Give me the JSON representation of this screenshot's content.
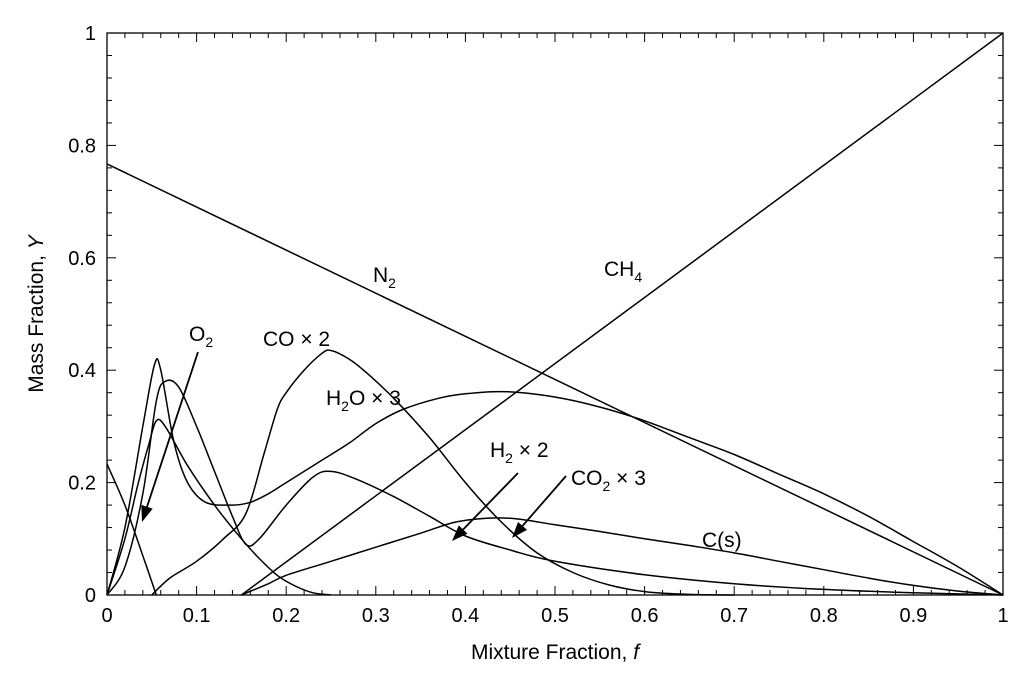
{
  "chart_data": {
    "type": "line",
    "xlabel": "Mixture Fraction, ",
    "xlabel_var": "f",
    "ylabel": "Mass Fraction, ",
    "ylabel_var": "Y",
    "xlim": [
      0,
      1
    ],
    "ylim": [
      0,
      1
    ],
    "x_ticks": [
      0,
      0.1,
      0.2,
      0.3,
      0.4,
      0.5,
      0.6,
      0.7,
      0.8,
      0.9,
      1
    ],
    "x_tick_labels": [
      "0",
      "0.1",
      "0.2",
      "0.3",
      "0.4",
      "0.5",
      "0.6",
      "0.7",
      "0.8",
      "0.9",
      "1"
    ],
    "y_ticks": [
      0,
      0.2,
      0.4,
      0.6,
      0.8,
      1
    ],
    "y_tick_labels": [
      "0",
      "0.2",
      "0.4",
      "0.6",
      "0.8",
      "1"
    ],
    "grid": false,
    "line_color": "#000000",
    "series": [
      {
        "name": "N2",
        "points": [
          [
            0,
            0.767
          ],
          [
            1,
            0
          ]
        ]
      },
      {
        "name": "CH4",
        "points": [
          [
            0.15,
            0
          ],
          [
            1,
            1
          ]
        ]
      },
      {
        "name": "O2",
        "points": [
          [
            0,
            0.233
          ],
          [
            0.02,
            0.16
          ],
          [
            0.04,
            0.07
          ],
          [
            0.055,
            0.0
          ]
        ]
      },
      {
        "name": "CO × 2",
        "points": [
          [
            0,
            0
          ],
          [
            0.02,
            0.05
          ],
          [
            0.04,
            0.18
          ],
          [
            0.055,
            0.345
          ],
          [
            0.065,
            0.38
          ],
          [
            0.08,
            0.37
          ],
          [
            0.1,
            0.3
          ],
          [
            0.12,
            0.22
          ],
          [
            0.14,
            0.14
          ],
          [
            0.155,
            0.09
          ],
          [
            0.17,
            0.1
          ],
          [
            0.2,
            0.16
          ],
          [
            0.23,
            0.21
          ],
          [
            0.25,
            0.22
          ],
          [
            0.28,
            0.205
          ],
          [
            0.32,
            0.175
          ],
          [
            0.36,
            0.14
          ],
          [
            0.4,
            0.105
          ],
          [
            0.45,
            0.08
          ],
          [
            0.5,
            0.06
          ],
          [
            0.6,
            0.036
          ],
          [
            0.7,
            0.02
          ],
          [
            0.8,
            0.01
          ],
          [
            0.9,
            0.004
          ],
          [
            1.0,
            0
          ]
        ]
      },
      {
        "name": "H2O × 3",
        "points": [
          [
            0,
            0
          ],
          [
            0.02,
            0.12
          ],
          [
            0.04,
            0.3
          ],
          [
            0.053,
            0.41
          ],
          [
            0.06,
            0.4
          ],
          [
            0.075,
            0.27
          ],
          [
            0.09,
            0.2
          ],
          [
            0.11,
            0.165
          ],
          [
            0.14,
            0.16
          ],
          [
            0.16,
            0.165
          ],
          [
            0.18,
            0.18
          ],
          [
            0.2,
            0.2
          ],
          [
            0.22,
            0.22
          ],
          [
            0.24,
            0.24
          ],
          [
            0.27,
            0.27
          ],
          [
            0.3,
            0.305
          ],
          [
            0.33,
            0.33
          ],
          [
            0.37,
            0.35
          ],
          [
            0.4,
            0.358
          ],
          [
            0.44,
            0.362
          ],
          [
            0.48,
            0.357
          ],
          [
            0.52,
            0.346
          ],
          [
            0.56,
            0.33
          ],
          [
            0.6,
            0.31
          ],
          [
            0.65,
            0.28
          ],
          [
            0.7,
            0.25
          ],
          [
            0.75,
            0.215
          ],
          [
            0.8,
            0.18
          ],
          [
            0.85,
            0.14
          ],
          [
            0.9,
            0.095
          ],
          [
            0.95,
            0.05
          ],
          [
            1.0,
            0
          ]
        ]
      },
      {
        "name": "H2 × 2",
        "points": [
          [
            0.05,
            0
          ],
          [
            0.07,
            0.03
          ],
          [
            0.1,
            0.06
          ],
          [
            0.13,
            0.1
          ],
          [
            0.155,
            0.145
          ],
          [
            0.175,
            0.25
          ],
          [
            0.19,
            0.33
          ],
          [
            0.2,
            0.36
          ],
          [
            0.22,
            0.4
          ],
          [
            0.24,
            0.43
          ],
          [
            0.25,
            0.435
          ],
          [
            0.27,
            0.42
          ],
          [
            0.29,
            0.395
          ],
          [
            0.32,
            0.35
          ],
          [
            0.36,
            0.28
          ],
          [
            0.4,
            0.2
          ],
          [
            0.44,
            0.13
          ],
          [
            0.48,
            0.075
          ],
          [
            0.52,
            0.04
          ],
          [
            0.56,
            0.018
          ],
          [
            0.6,
            0.006
          ],
          [
            0.65,
            0.001
          ],
          [
            0.7,
            0
          ]
        ]
      },
      {
        "name": "CO2 × 3",
        "points": [
          [
            0,
            0
          ],
          [
            0.02,
            0.1
          ],
          [
            0.035,
            0.2
          ],
          [
            0.047,
            0.27
          ],
          [
            0.055,
            0.31
          ],
          [
            0.065,
            0.3
          ],
          [
            0.09,
            0.23
          ],
          [
            0.12,
            0.16
          ],
          [
            0.15,
            0.1
          ],
          [
            0.17,
            0.065
          ],
          [
            0.19,
            0.035
          ],
          [
            0.21,
            0.016
          ],
          [
            0.23,
            0.004
          ],
          [
            0.25,
            0
          ]
        ]
      },
      {
        "name": "C(s)",
        "points": [
          [
            0.15,
            0
          ],
          [
            0.18,
            0.02
          ],
          [
            0.2,
            0.035
          ],
          [
            0.25,
            0.06
          ],
          [
            0.3,
            0.085
          ],
          [
            0.35,
            0.11
          ],
          [
            0.39,
            0.13
          ],
          [
            0.43,
            0.137
          ],
          [
            0.46,
            0.135
          ],
          [
            0.5,
            0.125
          ],
          [
            0.55,
            0.113
          ],
          [
            0.6,
            0.1
          ],
          [
            0.65,
            0.088
          ],
          [
            0.7,
            0.075
          ],
          [
            0.75,
            0.06
          ],
          [
            0.8,
            0.045
          ],
          [
            0.85,
            0.03
          ],
          [
            0.9,
            0.017
          ],
          [
            0.95,
            0.007
          ],
          [
            1.0,
            0
          ]
        ]
      }
    ],
    "labels": {
      "n2": {
        "base": "N",
        "sub": "2",
        "suffix": ""
      },
      "ch4": {
        "base": "CH",
        "sub": "4",
        "suffix": ""
      },
      "o2": {
        "base": "O",
        "sub": "2",
        "suffix": ""
      },
      "co": {
        "base": "CO × 2",
        "sub": "",
        "suffix": ""
      },
      "h2o": {
        "base": "H",
        "sub": "2",
        "suffix": "O × 3"
      },
      "h2": {
        "base": "H",
        "sub": "2",
        "suffix": " × 2"
      },
      "co2": {
        "base": "CO",
        "sub": "2",
        "suffix": " × 3"
      },
      "cs": {
        "base": "C(s)",
        "sub": "",
        "suffix": ""
      }
    }
  }
}
